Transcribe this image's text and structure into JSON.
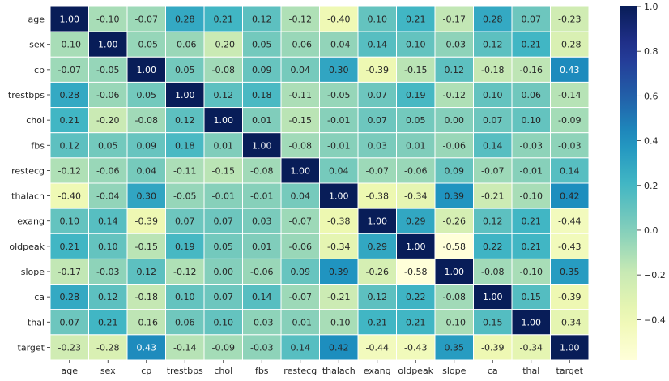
{
  "chart_data": {
    "type": "heatmap",
    "title": "",
    "xlabel": "",
    "ylabel": "",
    "labels": [
      "age",
      "sex",
      "cp",
      "trestbps",
      "chol",
      "fbs",
      "restecg",
      "thalach",
      "exang",
      "oldpeak",
      "slope",
      "ca",
      "thal",
      "target"
    ],
    "matrix": [
      [
        1.0,
        -0.1,
        -0.07,
        0.28,
        0.21,
        0.12,
        -0.12,
        -0.4,
        0.1,
        0.21,
        -0.17,
        0.28,
        0.07,
        -0.23
      ],
      [
        -0.1,
        1.0,
        -0.05,
        -0.06,
        -0.2,
        0.05,
        -0.06,
        -0.04,
        0.14,
        0.1,
        -0.03,
        0.12,
        0.21,
        -0.28
      ],
      [
        -0.07,
        -0.05,
        1.0,
        0.05,
        -0.08,
        0.09,
        0.04,
        0.3,
        -0.39,
        -0.15,
        0.12,
        -0.18,
        -0.16,
        0.43
      ],
      [
        0.28,
        -0.06,
        0.05,
        1.0,
        0.12,
        0.18,
        -0.11,
        -0.05,
        0.07,
        0.19,
        -0.12,
        0.1,
        0.06,
        -0.14
      ],
      [
        0.21,
        -0.2,
        -0.08,
        0.12,
        1.0,
        0.01,
        -0.15,
        -0.01,
        0.07,
        0.05,
        -0.0,
        0.07,
        0.1,
        -0.09
      ],
      [
        0.12,
        0.05,
        0.09,
        0.18,
        0.01,
        1.0,
        -0.08,
        -0.01,
        0.03,
        0.01,
        -0.06,
        0.14,
        -0.03,
        -0.03
      ],
      [
        -0.12,
        -0.06,
        0.04,
        -0.11,
        -0.15,
        -0.08,
        1.0,
        0.04,
        -0.07,
        -0.06,
        0.09,
        -0.07,
        -0.01,
        0.14
      ],
      [
        -0.4,
        -0.04,
        0.3,
        -0.05,
        -0.01,
        -0.01,
        0.04,
        1.0,
        -0.38,
        -0.34,
        0.39,
        -0.21,
        -0.1,
        0.42
      ],
      [
        0.1,
        0.14,
        -0.39,
        0.07,
        0.07,
        0.03,
        -0.07,
        -0.38,
        1.0,
        0.29,
        -0.26,
        0.12,
        0.21,
        -0.44
      ],
      [
        0.21,
        0.1,
        -0.15,
        0.19,
        0.05,
        0.01,
        -0.06,
        -0.34,
        0.29,
        1.0,
        -0.58,
        0.22,
        0.21,
        -0.43
      ],
      [
        -0.17,
        -0.03,
        0.12,
        -0.12,
        -0.0,
        -0.06,
        0.09,
        0.39,
        -0.26,
        -0.58,
        1.0,
        -0.08,
        -0.1,
        0.35
      ],
      [
        0.28,
        0.12,
        -0.18,
        0.1,
        0.07,
        0.14,
        -0.07,
        -0.21,
        0.12,
        0.22,
        -0.08,
        1.0,
        0.15,
        -0.39
      ],
      [
        0.07,
        0.21,
        -0.16,
        0.06,
        0.1,
        -0.03,
        -0.01,
        -0.1,
        0.21,
        0.21,
        -0.1,
        0.15,
        1.0,
        -0.34
      ],
      [
        -0.23,
        -0.28,
        0.43,
        -0.14,
        -0.09,
        -0.03,
        0.14,
        0.42,
        -0.44,
        -0.43,
        0.35,
        -0.39,
        -0.34,
        1.0
      ]
    ],
    "value_format": "0.00",
    "colorscale": "YlGnBu",
    "vmin": -0.58,
    "vmax": 1.0,
    "colorbar": {
      "ticks": [
        1.0,
        0.8,
        0.6,
        0.4,
        0.2,
        0.0,
        -0.2,
        -0.4
      ],
      "tick_labels": [
        "1.0",
        "0.8",
        "0.6",
        "0.4",
        "0.2",
        "0.0",
        "−0.2",
        "−0.4"
      ]
    },
    "cell_border_color": "#ffffff",
    "grid": false,
    "legend": "colorbar-right"
  }
}
